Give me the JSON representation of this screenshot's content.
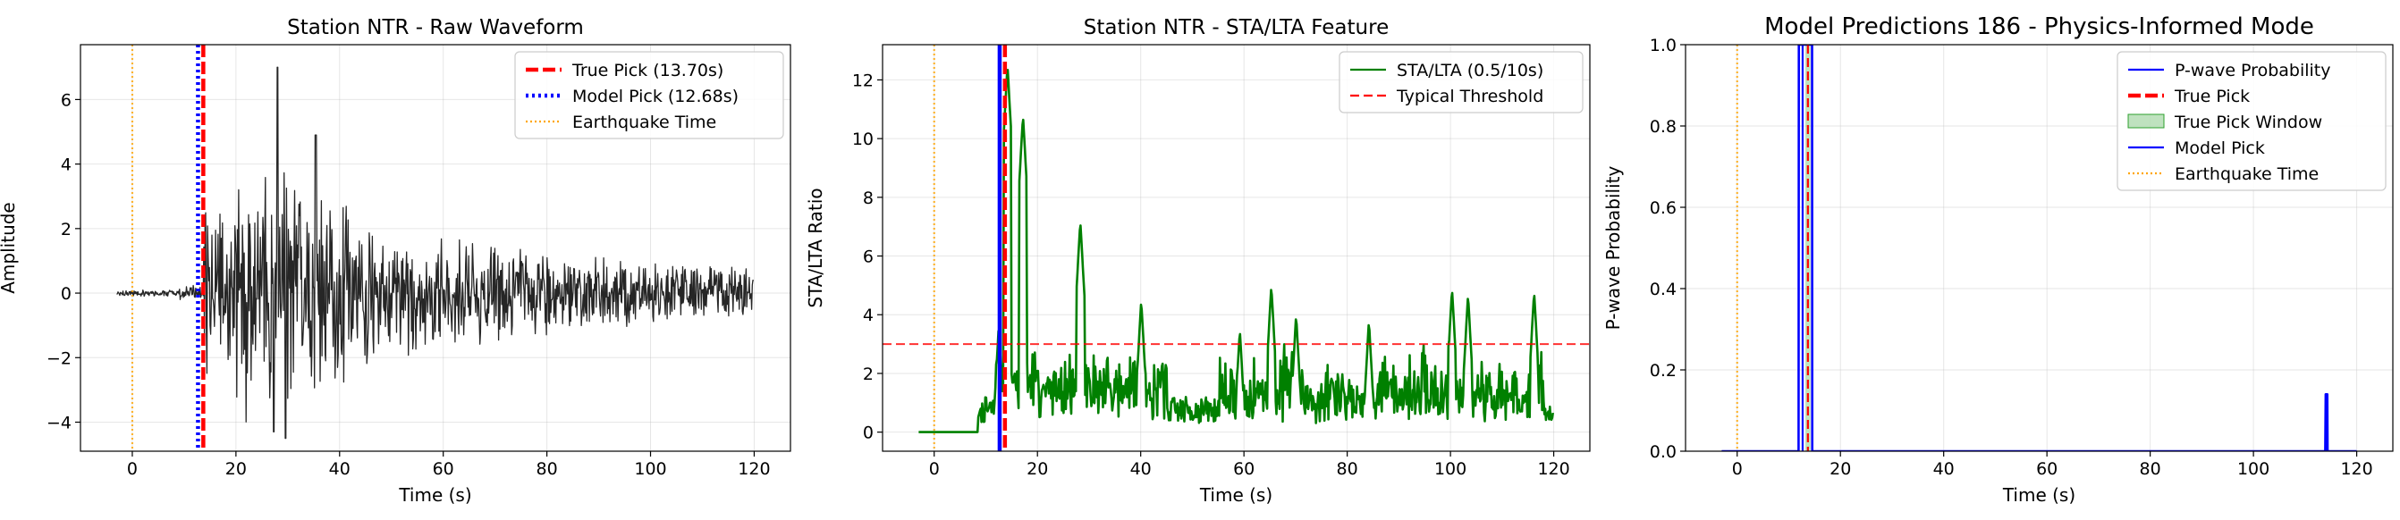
{
  "chart_data": [
    {
      "type": "line",
      "title": "Station NTR - Raw Waveform",
      "xlabel": "Time (s)",
      "ylabel": "Amplitude",
      "xlim": [
        -10,
        127
      ],
      "ylim": [
        -4.9,
        7.7
      ],
      "xticks": [
        0,
        20,
        40,
        60,
        80,
        100,
        120
      ],
      "yticks": [
        -4,
        -2,
        0,
        2,
        4,
        6
      ],
      "grid": true,
      "legend_position": "top-right",
      "series": [
        {
          "name": "",
          "color": "#262626",
          "style": "waveform",
          "x_range": [
            -3,
            120
          ]
        }
      ],
      "vlines": [
        {
          "name": "True Pick (13.70s)",
          "x": 13.7,
          "color": "#ff0000",
          "style": "dashed-thick"
        },
        {
          "name": "Model Pick (12.68s)",
          "x": 12.68,
          "color": "#0000ff",
          "style": "dotted-thick"
        },
        {
          "name": "Earthquake Time",
          "x": 0,
          "color": "#ffa500",
          "style": "dotted"
        }
      ]
    },
    {
      "type": "line",
      "title": "Station NTR - STA/LTA Feature",
      "xlabel": "Time (s)",
      "ylabel": "STA/LTA Ratio",
      "xlim": [
        -10,
        127
      ],
      "ylim": [
        -0.65,
        13.2
      ],
      "xticks": [
        0,
        20,
        40,
        60,
        80,
        100,
        120
      ],
      "yticks": [
        0,
        2,
        4,
        6,
        8,
        10,
        12
      ],
      "grid": true,
      "legend_position": "top-right",
      "series": [
        {
          "name": "STA/LTA (0.5/10s)",
          "color": "#008000",
          "style": "solid",
          "peaks": [
            [
              12.5,
              3.6
            ],
            [
              14.2,
              12.5
            ],
            [
              17.2,
              10.8
            ],
            [
              28.3,
              7.2
            ],
            [
              40.1,
              4.5
            ],
            [
              59.2,
              3.5
            ],
            [
              65.3,
              5.0
            ],
            [
              70.1,
              4.0
            ],
            [
              84.2,
              3.8
            ],
            [
              100.3,
              4.9
            ],
            [
              103.4,
              4.7
            ],
            [
              116.2,
              4.8
            ]
          ]
        }
      ],
      "hlines": [
        {
          "name": "Typical Threshold",
          "y": 3.0,
          "color": "#ff0000",
          "style": "dashed"
        }
      ],
      "vlines": [
        {
          "x": 13.7,
          "color": "#ff0000",
          "style": "dashed-thick"
        },
        {
          "x": 12.68,
          "color": "#0000ff",
          "style": "solid-thick"
        },
        {
          "x": 0,
          "color": "#ffa500",
          "style": "dotted"
        }
      ]
    },
    {
      "type": "line",
      "title": "Model Predictions 186 - Physics-Informed Mode",
      "xlabel": "Time (s)",
      "ylabel": "P-wave Probability",
      "xlim": [
        -10,
        127
      ],
      "ylim": [
        0,
        1.0
      ],
      "xticks": [
        0,
        20,
        40,
        60,
        80,
        100,
        120
      ],
      "yticks": [
        0.0,
        0.2,
        0.4,
        0.6,
        0.8,
        1.0
      ],
      "grid": true,
      "legend_position": "top-right",
      "series": [
        {
          "name": "P-wave Probability",
          "color": "#0000ff",
          "points": [
            [
              -3,
              0
            ],
            [
              11.9,
              0
            ],
            [
              11.95,
              1.0
            ],
            [
              14.5,
              1.0
            ],
            [
              14.55,
              0
            ],
            [
              113.9,
              0
            ],
            [
              114.0,
              0.14
            ],
            [
              114.3,
              0.14
            ],
            [
              114.35,
              0
            ],
            [
              120,
              0
            ]
          ]
        }
      ],
      "vlines": [
        {
          "name": "True Pick",
          "x": 13.7,
          "color": "#ff0000",
          "style": "dashed"
        },
        {
          "name": "Model Pick",
          "x": 12.68,
          "color": "#0000ff",
          "style": "solid"
        },
        {
          "name": "Earthquake Time",
          "x": 0,
          "color": "#ffa500",
          "style": "dotted"
        }
      ],
      "spans": [
        {
          "name": "True Pick Window",
          "x0": 13.2,
          "x1": 14.2,
          "color": "#2ca02c",
          "alpha": 0.3
        }
      ]
    }
  ]
}
